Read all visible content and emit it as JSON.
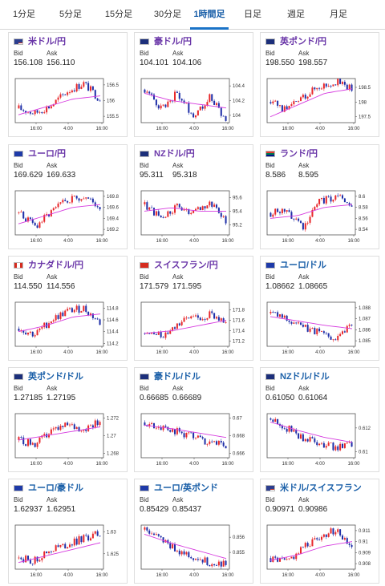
{
  "tabs": [
    {
      "label": "1分足",
      "active": false
    },
    {
      "label": "5分足",
      "active": false
    },
    {
      "label": "15分足",
      "active": false
    },
    {
      "label": "30分足",
      "active": false
    },
    {
      "label": "1時間足",
      "active": true
    },
    {
      "label": "日足",
      "active": false
    },
    {
      "label": "週足",
      "active": false
    },
    {
      "label": "月足",
      "active": false
    }
  ],
  "labels": {
    "bid": "Bid",
    "ask": "Ask"
  },
  "colors": {
    "up": "#e8282b",
    "down": "#1f2fa8",
    "ma": "#d63adf",
    "accent": "#1a73c7",
    "title_purple": "#6a36a8",
    "title_blue": "#1a5fa8"
  },
  "cards": [
    {
      "title": "米ドル/円",
      "bid": "156.108",
      "ask": "156.110",
      "flag": "us",
      "title_color": "purple",
      "chart_data": {
        "type": "candlestick",
        "x_ticks": [
          "16:00",
          "4:00",
          "16:00"
        ],
        "y_ticks": [
          "156.5",
          "156",
          "155.5"
        ],
        "ylim": [
          155.3,
          156.7
        ],
        "trend": [
          155.75,
          155.6,
          155.85,
          156.3,
          156.55,
          156.05
        ],
        "ma": [
          155.55,
          155.8,
          156.05,
          156.15
        ]
      }
    },
    {
      "title": "豪ドル/円",
      "bid": "104.101",
      "ask": "104.106",
      "flag": "au",
      "title_color": "purple",
      "chart_data": {
        "type": "candlestick",
        "x_ticks": [
          "16:00",
          "4:00",
          "16:00"
        ],
        "y_ticks": [
          "104.4",
          "104.2",
          "104"
        ],
        "ylim": [
          103.9,
          104.5
        ],
        "trend": [
          104.35,
          104.1,
          104.3,
          104.0,
          104.25,
          103.95
        ],
        "ma": [
          104.3,
          104.2,
          104.15,
          104.1
        ]
      }
    },
    {
      "title": "英ポンド/円",
      "bid": "198.550",
      "ask": "198.557",
      "flag": "uk",
      "title_color": "purple",
      "chart_data": {
        "type": "candlestick",
        "x_ticks": [
          "16:00",
          "4:00",
          "16:00"
        ],
        "y_ticks": [
          "198.5",
          "198",
          "197.5"
        ],
        "ylim": [
          197.3,
          198.8
        ],
        "trend": [
          198.0,
          197.7,
          198.2,
          198.55,
          198.7,
          198.45
        ],
        "ma": [
          197.5,
          197.9,
          198.3,
          198.45
        ]
      }
    },
    {
      "title": "ユーロ/円",
      "bid": "169.629",
      "ask": "169.633",
      "flag": "eu",
      "title_color": "purple",
      "chart_data": {
        "type": "candlestick",
        "x_ticks": [
          "16:00",
          "4:00",
          "16:00"
        ],
        "y_ticks": [
          "169.8",
          "169.6",
          "169.4",
          "169.2"
        ],
        "ylim": [
          169.1,
          169.9
        ],
        "trend": [
          169.5,
          169.25,
          169.5,
          169.75,
          169.8,
          169.6
        ],
        "ma": [
          169.3,
          169.45,
          169.6,
          169.65
        ]
      }
    },
    {
      "title": "NZドル/円",
      "bid": "95.311",
      "ask": "95.318",
      "flag": "nz",
      "title_color": "purple",
      "chart_data": {
        "type": "candlestick",
        "x_ticks": [
          "16:00",
          "4:00",
          "16:00"
        ],
        "y_ticks": [
          "95.6",
          "95.4",
          "95.2"
        ],
        "ylim": [
          95.05,
          95.7
        ],
        "trend": [
          95.5,
          95.3,
          95.45,
          95.35,
          95.55,
          95.25
        ],
        "ma": [
          95.4,
          95.45,
          95.4,
          95.4
        ]
      }
    },
    {
      "title": "ランド/円",
      "bid": "8.586",
      "ask": "8.595",
      "flag": "za",
      "title_color": "purple",
      "chart_data": {
        "type": "candlestick",
        "x_ticks": [
          "16:00",
          "4:00",
          "16:00"
        ],
        "y_ticks": [
          "8.6",
          "8.58",
          "8.56",
          "8.54"
        ],
        "ylim": [
          8.53,
          8.61
        ],
        "trend": [
          8.57,
          8.575,
          8.545,
          8.59,
          8.6,
          8.585
        ],
        "ma": [
          8.56,
          8.565,
          8.58,
          8.585
        ]
      }
    },
    {
      "title": "カナダドル/円",
      "bid": "114.550",
      "ask": "114.556",
      "flag": "ca",
      "title_color": "purple",
      "chart_data": {
        "type": "candlestick",
        "x_ticks": [
          "16:00",
          "4:00",
          "16:00"
        ],
        "y_ticks": [
          "114.8",
          "114.6",
          "114.4",
          "114.2"
        ],
        "ylim": [
          114.15,
          114.9
        ],
        "trend": [
          114.45,
          114.35,
          114.6,
          114.75,
          114.8,
          114.55
        ],
        "ma": [
          114.4,
          114.5,
          114.65,
          114.7
        ]
      }
    },
    {
      "title": "スイスフラン/円",
      "bid": "171.579",
      "ask": "171.595",
      "flag": "ch",
      "title_color": "purple",
      "chart_data": {
        "type": "candlestick",
        "x_ticks": [
          "16:00",
          "4:00",
          "16:00"
        ],
        "y_ticks": [
          "171.8",
          "171.6",
          "171.4",
          "171.2"
        ],
        "ylim": [
          171.1,
          171.95
        ],
        "trend": [
          171.35,
          171.3,
          171.55,
          171.65,
          171.7,
          171.6
        ],
        "ma": [
          171.35,
          171.4,
          171.5,
          171.6
        ]
      }
    },
    {
      "title": "ユーロ/ドル",
      "bid": "1.08662",
      "ask": "1.08665",
      "flag": "eu",
      "title_color": "blue",
      "chart_data": {
        "type": "candlestick",
        "x_ticks": [
          "16:00",
          "4:00",
          "16:00"
        ],
        "y_ticks": [
          "1.088",
          "1.087",
          "1.086",
          "1.085"
        ],
        "ylim": [
          1.0845,
          1.0885
        ],
        "trend": [
          1.0875,
          1.087,
          1.0862,
          1.0858,
          1.0853,
          1.0866
        ],
        "ma": [
          1.0872,
          1.0868,
          1.0864,
          1.0861
        ]
      }
    },
    {
      "title": "英ポンド/ドル",
      "bid": "1.27185",
      "ask": "1.27195",
      "flag": "uk",
      "title_color": "blue",
      "chart_data": {
        "type": "candlestick",
        "x_ticks": [
          "16:00",
          "4:00",
          "16:00"
        ],
        "y_ticks": [
          "1.272",
          "1.27",
          "1.268"
        ],
        "ylim": [
          1.2675,
          1.2725
        ],
        "trend": [
          1.2695,
          1.269,
          1.2705,
          1.2712,
          1.2708,
          1.2718
        ],
        "ma": [
          1.2695,
          1.27,
          1.2705,
          1.271
        ]
      }
    },
    {
      "title": "豪ドル/ドル",
      "bid": "0.66685",
      "ask": "0.66689",
      "flag": "au",
      "title_color": "blue",
      "chart_data": {
        "type": "candlestick",
        "x_ticks": [
          "16:00",
          "4:00",
          "16:00"
        ],
        "y_ticks": [
          "0.67",
          "0.668",
          "0.666"
        ],
        "ylim": [
          0.6655,
          0.6705
        ],
        "trend": [
          0.6695,
          0.669,
          0.6685,
          0.6678,
          0.6673,
          0.6668
        ],
        "ma": [
          0.6692,
          0.6688,
          0.6683,
          0.6678
        ]
      }
    },
    {
      "title": "NZドル/ドル",
      "bid": "0.61050",
      "ask": "0.61064",
      "flag": "nz",
      "title_color": "blue",
      "chart_data": {
        "type": "candlestick",
        "x_ticks": [
          "16:00",
          "4:00",
          "16:00"
        ],
        "y_ticks": [
          "0.612",
          "0.61"
        ],
        "ylim": [
          0.6095,
          0.6132
        ],
        "trend": [
          0.6128,
          0.612,
          0.6112,
          0.6108,
          0.6103,
          0.6106
        ],
        "ma": [
          0.6125,
          0.6118,
          0.6112,
          0.6108
        ]
      }
    },
    {
      "title": "ユーロ/豪ドル",
      "bid": "1.62937",
      "ask": "1.62951",
      "flag": "eu",
      "title_color": "blue",
      "chart_data": {
        "type": "candlestick",
        "x_ticks": [
          "16:00",
          "4:00",
          "16:00"
        ],
        "y_ticks": [
          "1.63",
          "1.625"
        ],
        "ylim": [
          1.6215,
          1.6315
        ],
        "trend": [
          1.624,
          1.6235,
          1.626,
          1.627,
          1.6285,
          1.6295
        ],
        "ma": [
          1.623,
          1.6245,
          1.626,
          1.6275
        ]
      }
    },
    {
      "title": "ユーロ/英ポンド",
      "bid": "0.85429",
      "ask": "0.85437",
      "flag": "eu",
      "title_color": "blue",
      "chart_data": {
        "type": "candlestick",
        "x_ticks": [
          "16:00",
          "4:00",
          "16:00"
        ],
        "y_ticks": [
          "0.856",
          "0.855"
        ],
        "ylim": [
          0.8539,
          0.8568
        ],
        "trend": [
          0.8565,
          0.8558,
          0.8552,
          0.8547,
          0.8543,
          0.8543
        ],
        "ma": [
          0.8562,
          0.8556,
          0.8551,
          0.8546
        ]
      }
    },
    {
      "title": "米ドル/スイスフラン",
      "bid": "0.90971",
      "ask": "0.90986",
      "flag": "us",
      "title_color": "blue",
      "chart_data": {
        "type": "candlestick",
        "x_ticks": [
          "16:00",
          "4:00",
          "16:00"
        ],
        "y_ticks": [
          "0.911",
          "0.91",
          "0.909",
          "0.908"
        ],
        "ylim": [
          0.9075,
          0.9115
        ],
        "trend": [
          0.9085,
          0.9082,
          0.9095,
          0.9105,
          0.911,
          0.9097
        ],
        "ma": [
          0.9083,
          0.9088,
          0.9096,
          0.91
        ]
      }
    }
  ]
}
